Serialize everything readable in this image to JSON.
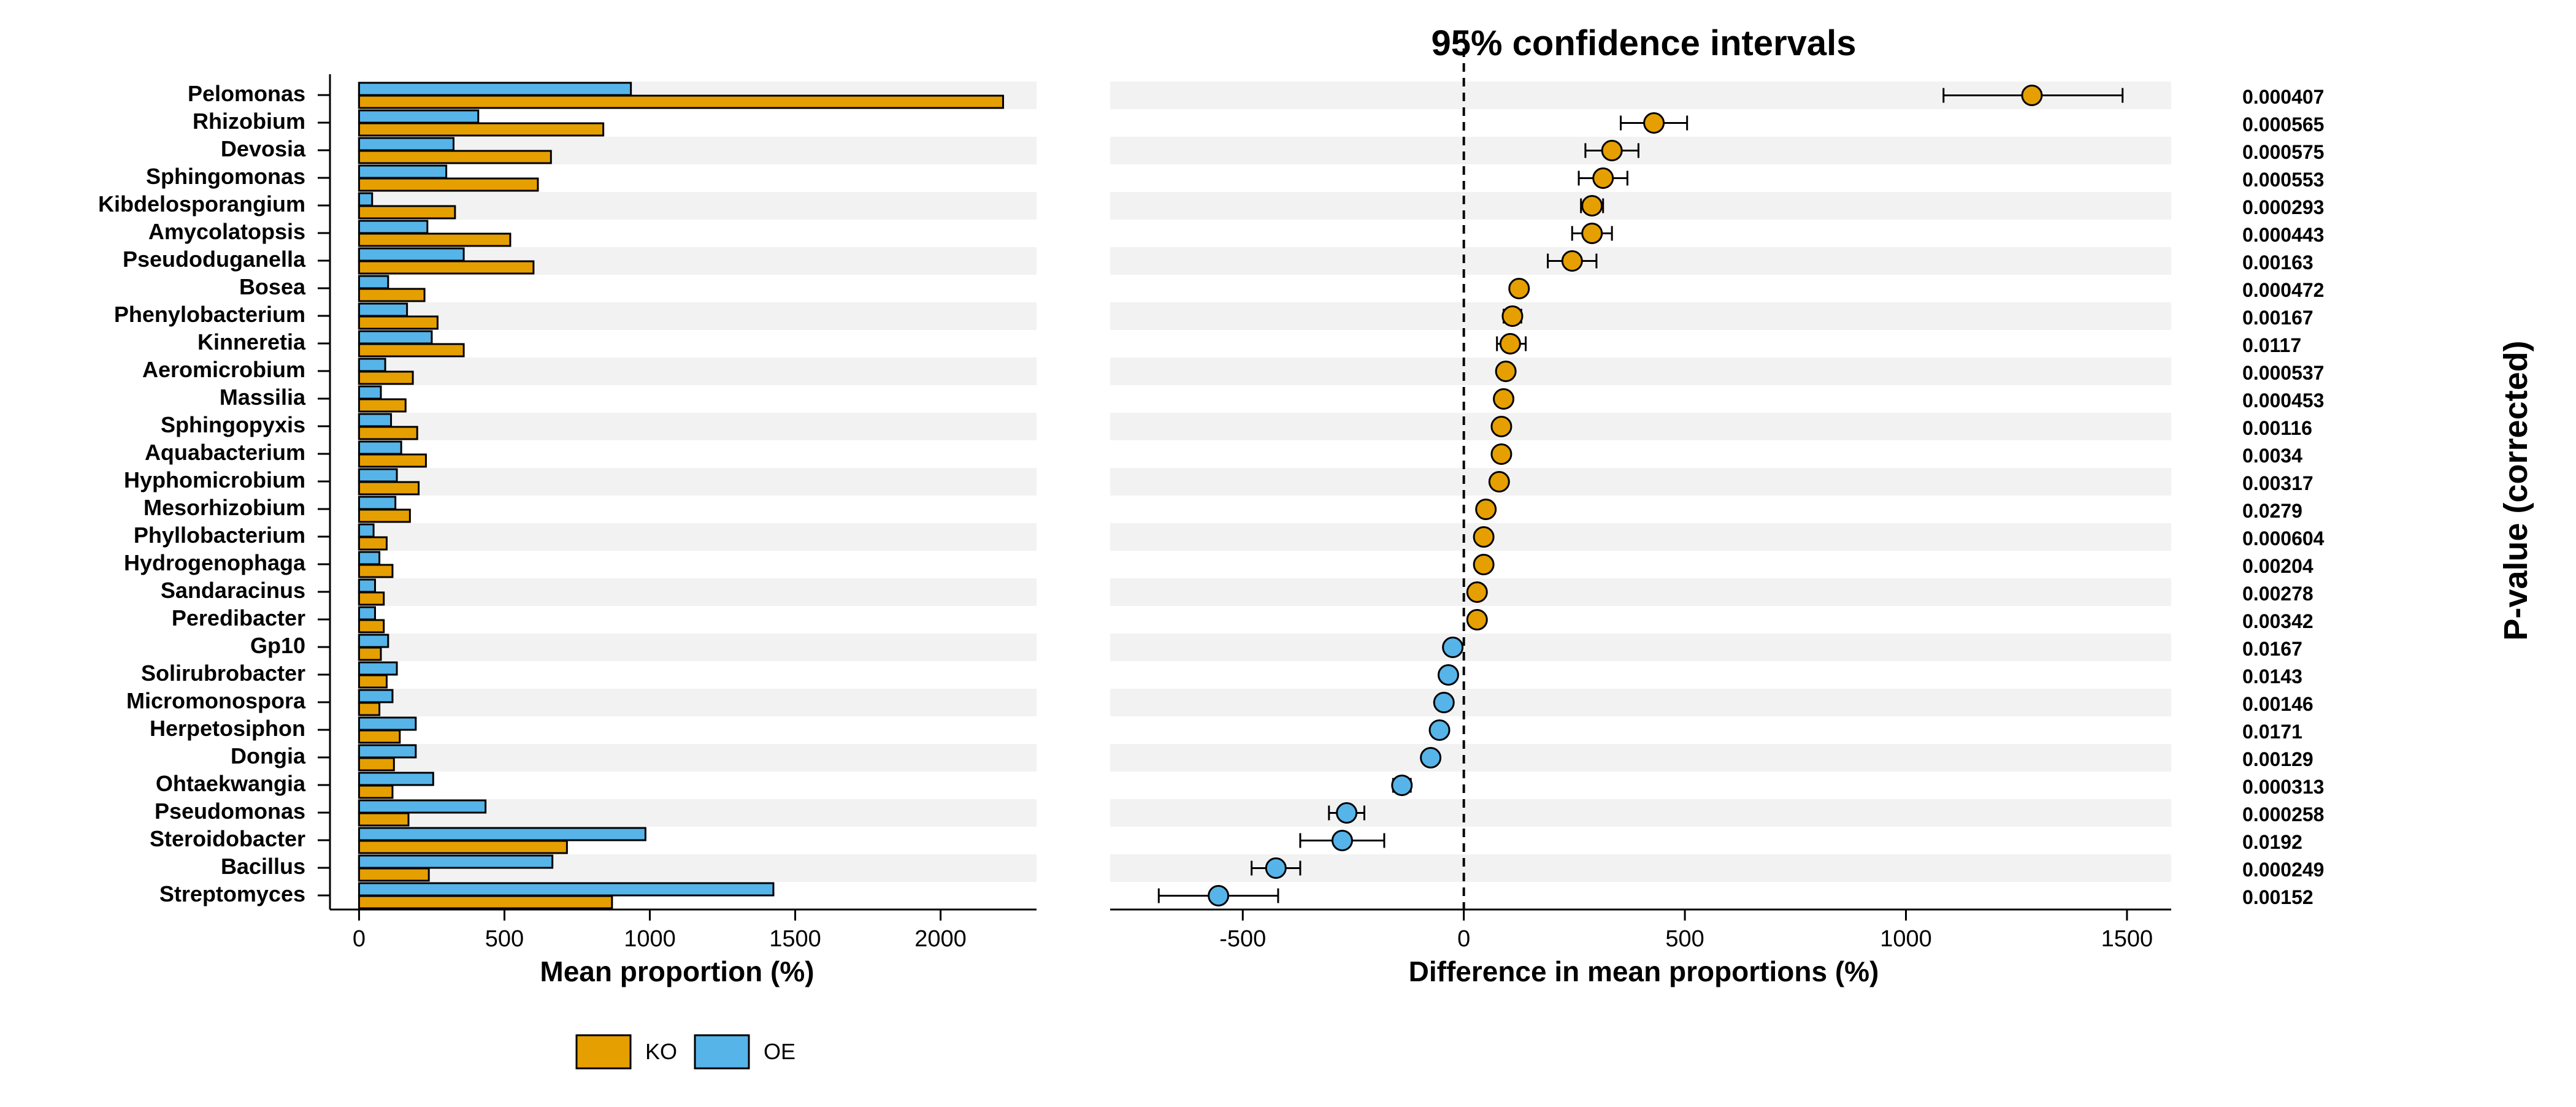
{
  "chart_data": [
    {
      "type": "bar",
      "orientation": "horizontal",
      "xlabel": "Mean proportion (%)",
      "xlim": [
        -100,
        2330
      ],
      "xticks": [
        0,
        500,
        1000,
        1500,
        2000
      ],
      "categories": [
        "Pelomonas",
        "Rhizobium",
        "Devosia",
        "Sphingomonas",
        "Kibdelosporangium",
        "Amycolatopsis",
        "Pseudoduganella",
        "Bosea",
        "Phenylobacterium",
        "Kinneretia",
        "Aeromicrobium",
        "Massilia",
        "Sphingopyxis",
        "Aquabacterium",
        "Hyphomicrobium",
        "Mesorhizobium",
        "Phyllobacterium",
        "Hydrogenophaga",
        "Sandaracinus",
        "Peredibacter",
        "Gp10",
        "Solirubrobacter",
        "Micromonospora",
        "Herpetosiphon",
        "Dongia",
        "Ohtaekwangia",
        "Pseudomonas",
        "Steroidobacter",
        "Bacillus",
        "Streptomyces"
      ],
      "series": [
        {
          "name": "OE",
          "color": "#56B4E9",
          "values": [
            935,
            410,
            325,
            300,
            45,
            235,
            360,
            100,
            165,
            250,
            90,
            75,
            110,
            145,
            130,
            125,
            50,
            70,
            55,
            55,
            100,
            130,
            115,
            195,
            195,
            255,
            435,
            985,
            665,
            1425
          ]
        },
        {
          "name": "KO",
          "color": "#E69F00",
          "values": [
            2215,
            840,
            660,
            615,
            330,
            520,
            600,
            225,
            270,
            360,
            185,
            160,
            200,
            230,
            205,
            175,
            95,
            115,
            85,
            85,
            75,
            95,
            70,
            140,
            120,
            115,
            170,
            715,
            240,
            870
          ]
        }
      ],
      "grid": false
    },
    {
      "type": "scatter",
      "title": "95% confidence intervals",
      "xlabel": "Difference in mean proportions (%)",
      "xlim": [
        -800,
        1600
      ],
      "xticks": [
        -500,
        0,
        500,
        1000,
        1500
      ],
      "reference_line": 0,
      "categories": [
        "Pelomonas",
        "Rhizobium",
        "Devosia",
        "Sphingomonas",
        "Kibdelosporangium",
        "Amycolatopsis",
        "Pseudoduganella",
        "Bosea",
        "Phenylobacterium",
        "Kinneretia",
        "Aeromicrobium",
        "Massilia",
        "Sphingopyxis",
        "Aquabacterium",
        "Hyphomicrobium",
        "Mesorhizobium",
        "Phyllobacterium",
        "Hydrogenophaga",
        "Sandaracinus",
        "Peredibacter",
        "Gp10",
        "Solirubrobacter",
        "Micromonospora",
        "Herpetosiphon",
        "Dongia",
        "Ohtaekwangia",
        "Pseudomonas",
        "Steroidobacter",
        "Bacillus",
        "Streptomyces"
      ],
      "values": [
        1285,
        430,
        335,
        315,
        290,
        290,
        245,
        125,
        110,
        105,
        95,
        90,
        85,
        85,
        80,
        50,
        45,
        45,
        30,
        30,
        -25,
        -35,
        -45,
        -55,
        -75,
        -140,
        -265,
        -275,
        -425,
        -555
      ],
      "ci_low": [
        1085,
        355,
        275,
        260,
        265,
        245,
        190,
        110,
        90,
        75,
        85,
        85,
        75,
        70,
        70,
        40,
        35,
        35,
        20,
        20,
        -40,
        -50,
        -60,
        -70,
        -90,
        -160,
        -305,
        -370,
        -480,
        -690
      ],
      "ci_high": [
        1490,
        505,
        395,
        370,
        315,
        335,
        300,
        140,
        130,
        140,
        105,
        100,
        95,
        100,
        90,
        60,
        55,
        55,
        40,
        40,
        -10,
        -20,
        -30,
        -40,
        -60,
        -120,
        -225,
        -180,
        -370,
        -420
      ],
      "point_colors": [
        "#E69F00",
        "#E69F00",
        "#E69F00",
        "#E69F00",
        "#E69F00",
        "#E69F00",
        "#E69F00",
        "#E69F00",
        "#E69F00",
        "#E69F00",
        "#E69F00",
        "#E69F00",
        "#E69F00",
        "#E69F00",
        "#E69F00",
        "#E69F00",
        "#E69F00",
        "#E69F00",
        "#E69F00",
        "#E69F00",
        "#56B4E9",
        "#56B4E9",
        "#56B4E9",
        "#56B4E9",
        "#56B4E9",
        "#56B4E9",
        "#56B4E9",
        "#56B4E9",
        "#56B4E9",
        "#56B4E9"
      ],
      "p_value_label": "P-value (corrected)",
      "p_values": [
        "0.000407",
        "0.000565",
        "0.000575",
        "0.000553",
        "0.000293",
        "0.000443",
        "0.00163",
        "0.000472",
        "0.00167",
        "0.0117",
        "0.000537",
        "0.000453",
        "0.00116",
        "0.0034",
        "0.00317",
        "0.0279",
        "0.000604",
        "0.00204",
        "0.00278",
        "0.00342",
        "0.0167",
        "0.0143",
        "0.00146",
        "0.0171",
        "0.00129",
        "0.000313",
        "0.000258",
        "0.0192",
        "0.000249",
        "0.00152"
      ]
    }
  ],
  "legend": {
    "position": "bottom-left",
    "items": [
      {
        "label": "KO",
        "color": "#E69F00"
      },
      {
        "label": "OE",
        "color": "#56B4E9"
      }
    ]
  }
}
